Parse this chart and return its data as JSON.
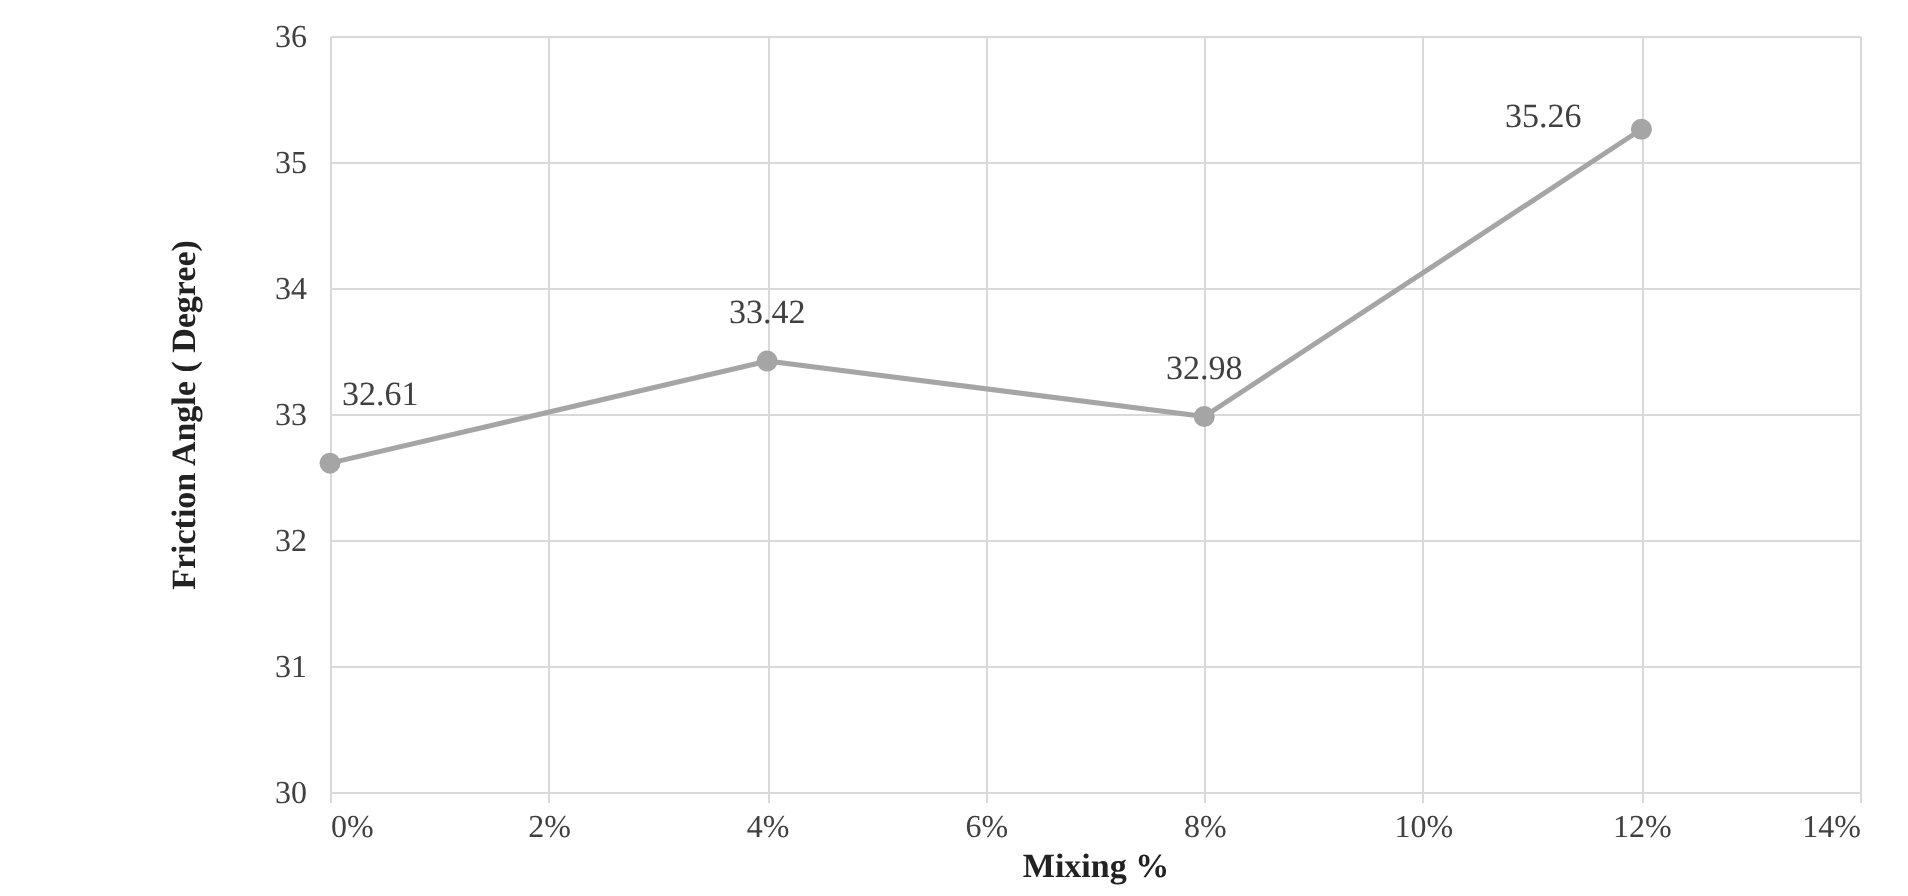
{
  "chart_data": {
    "type": "line",
    "xlabel": "Mixing %",
    "ylabel": "Friction Angle ( Degree)",
    "x": [
      0,
      4,
      8,
      12
    ],
    "series": [
      {
        "color": "#a5a5a5",
        "values": [
          32.61,
          33.42,
          32.98,
          35.26
        ]
      }
    ],
    "xlim": [
      0,
      14
    ],
    "xticks": [
      {
        "value": 0,
        "label": "0%"
      },
      {
        "value": 2,
        "label": "2%"
      },
      {
        "value": 4,
        "label": "4%"
      },
      {
        "value": 6,
        "label": "6%"
      },
      {
        "value": 8,
        "label": "8%"
      },
      {
        "value": 10,
        "label": "10%"
      },
      {
        "value": 12,
        "label": "12%"
      },
      {
        "value": 14,
        "label": "14%"
      }
    ],
    "ylim": [
      30,
      36
    ],
    "yticks": [
      30,
      31,
      32,
      33,
      34,
      35,
      36
    ],
    "grid": true,
    "marker": "circle",
    "line_style": "solid",
    "data_labels": true
  }
}
